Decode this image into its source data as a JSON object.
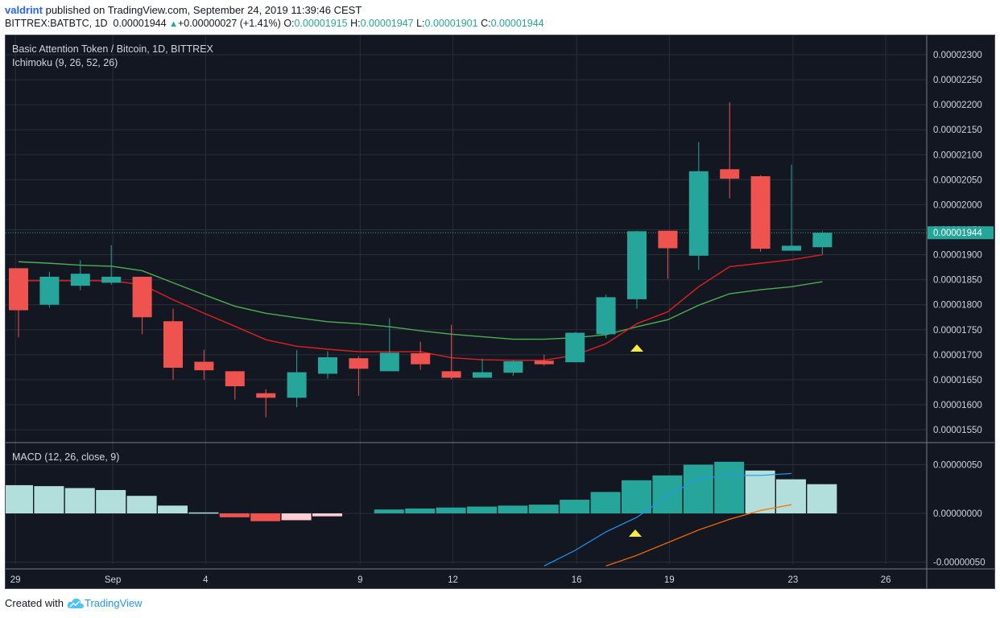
{
  "header": {
    "author": "valdrint",
    "published_text": "published on TradingView.com, September 24, 2019 11:39:46 CEST",
    "symbol_line": "BITTREX:BATBTC, 1D",
    "last_price": "0.00001944",
    "change": "+0.00000027 (+1.41%)",
    "open_label": "O:",
    "open": "0.00001915",
    "high_label": "H:",
    "high": "0.00001947",
    "low_label": "L:",
    "low": "0.00001901",
    "close_label": "C:",
    "close": "0.00001944"
  },
  "footer": {
    "created_with": "Created with",
    "brand": "TradingView"
  },
  "colors": {
    "bull": "#26a69a",
    "bear": "#ef5350",
    "background": "#131722",
    "grid": "#2a2e39",
    "tenkan": "#e02020",
    "kijun": "#4caf50",
    "macd_line": "#2196f3",
    "signal_line": "#ff6d00",
    "marker": "#ffeb3b"
  },
  "chart_data": [
    {
      "type": "candlestick",
      "title": "Basic Attention Token / Bitcoin, 1D, BITTREX",
      "indicator_label": "Ichimoku (9, 26, 52, 26)",
      "x_ticks": [
        "29",
        "Sep",
        "4",
        "9",
        "12",
        "16",
        "19",
        "23",
        "26"
      ],
      "y_ticks": [
        "0.00002300",
        "0.00002250",
        "0.00002200",
        "0.00002150",
        "0.00002100",
        "0.00002050",
        "0.00002000",
        "0.00001950",
        "0.00001900",
        "0.00001850",
        "0.00001800",
        "0.00001750",
        "0.00001700",
        "0.00001650",
        "0.00001600",
        "0.00001550"
      ],
      "ylim": [
        1.525e-05,
        2.325e-05
      ],
      "current_price_label": "0.00001944",
      "candles": [
        {
          "o": 1873,
          "h": 1873,
          "l": 1735,
          "c": 1789
        },
        {
          "o": 1800,
          "h": 1866,
          "l": 1794,
          "c": 1856
        },
        {
          "o": 1838,
          "h": 1889,
          "l": 1829,
          "c": 1862
        },
        {
          "o": 1844,
          "h": 1919,
          "l": 1840,
          "c": 1856
        },
        {
          "o": 1856,
          "h": 1856,
          "l": 1741,
          "c": 1775
        },
        {
          "o": 1767,
          "h": 1792,
          "l": 1650,
          "c": 1674
        },
        {
          "o": 1686,
          "h": 1710,
          "l": 1650,
          "c": 1669
        },
        {
          "o": 1667,
          "h": 1667,
          "l": 1610,
          "c": 1637
        },
        {
          "o": 1623,
          "h": 1631,
          "l": 1575,
          "c": 1614
        },
        {
          "o": 1614,
          "h": 1709,
          "l": 1595,
          "c": 1665
        },
        {
          "o": 1662,
          "h": 1707,
          "l": 1652,
          "c": 1695
        },
        {
          "o": 1693,
          "h": 1697,
          "l": 1618,
          "c": 1672
        },
        {
          "o": 1667,
          "h": 1773,
          "l": 1667,
          "c": 1704
        },
        {
          "o": 1703,
          "h": 1726,
          "l": 1670,
          "c": 1681
        },
        {
          "o": 1667,
          "h": 1760,
          "l": 1651,
          "c": 1654
        },
        {
          "o": 1654,
          "h": 1692,
          "l": 1654,
          "c": 1665
        },
        {
          "o": 1664,
          "h": 1689,
          "l": 1658,
          "c": 1687
        },
        {
          "o": 1688,
          "h": 1700,
          "l": 1678,
          "c": 1681
        },
        {
          "o": 1685,
          "h": 1745,
          "l": 1685,
          "c": 1744
        },
        {
          "o": 1741,
          "h": 1820,
          "l": 1733,
          "c": 1815
        },
        {
          "o": 1811,
          "h": 1948,
          "l": 1792,
          "c": 1947
        },
        {
          "o": 1948,
          "h": 1948,
          "l": 1852,
          "c": 1913
        },
        {
          "o": 1898,
          "h": 2125,
          "l": 1870,
          "c": 2067
        },
        {
          "o": 2071,
          "h": 2205,
          "l": 2013,
          "c": 2052
        },
        {
          "o": 2057,
          "h": 2059,
          "l": 1906,
          "c": 1912
        },
        {
          "o": 1908,
          "h": 2080,
          "l": 1908,
          "c": 1918
        },
        {
          "o": 1915,
          "h": 1947,
          "l": 1901,
          "c": 1944
        }
      ],
      "tenkan_sen": [
        1848,
        1848,
        1848,
        1848,
        1840,
        1810,
        1783,
        1757,
        1730,
        1717,
        1711,
        1706,
        1706,
        1706,
        1694,
        1690,
        1689,
        1689,
        1699,
        1722,
        1762,
        1786,
        1836,
        1876,
        1883,
        1890,
        1900
      ],
      "kijun_sen": [
        1886,
        1883,
        1879,
        1877,
        1868,
        1844,
        1820,
        1797,
        1783,
        1774,
        1766,
        1762,
        1756,
        1748,
        1741,
        1736,
        1731,
        1731,
        1734,
        1740,
        1756,
        1770,
        1799,
        1822,
        1830,
        1836,
        1846
      ],
      "up_markers_at_index": [
        20
      ]
    },
    {
      "type": "bar",
      "title": "MACD (12, 26, close, 9)",
      "y_ticks": [
        "0.00000050",
        "0.00000000",
        "-0.00000050"
      ],
      "ylim": [
        -5.2e-07,
        6e-07
      ],
      "histogram": [
        0.29,
        0.28,
        0.26,
        0.24,
        0.18,
        0.08,
        0.01,
        -0.04,
        -0.08,
        -0.07,
        -0.03,
        null,
        0.04,
        0.05,
        0.06,
        0.07,
        0.08,
        0.09,
        0.14,
        0.22,
        0.34,
        0.39,
        0.5,
        0.53,
        0.44,
        0.35,
        0.3
      ],
      "macd_line": [
        null,
        null,
        null,
        null,
        null,
        null,
        null,
        null,
        null,
        null,
        null,
        null,
        null,
        null,
        null,
        null,
        null,
        -0.54,
        -0.38,
        -0.19,
        -0.04,
        0.18,
        0.36,
        0.39,
        0.39,
        0.41,
        null
      ],
      "signal_line": [
        null,
        null,
        null,
        null,
        null,
        null,
        null,
        null,
        null,
        null,
        null,
        null,
        null,
        null,
        null,
        null,
        null,
        null,
        null,
        -0.54,
        -0.43,
        -0.3,
        -0.17,
        -0.06,
        0.03,
        0.09,
        null
      ],
      "up_markers_at_index": [
        20
      ]
    }
  ]
}
